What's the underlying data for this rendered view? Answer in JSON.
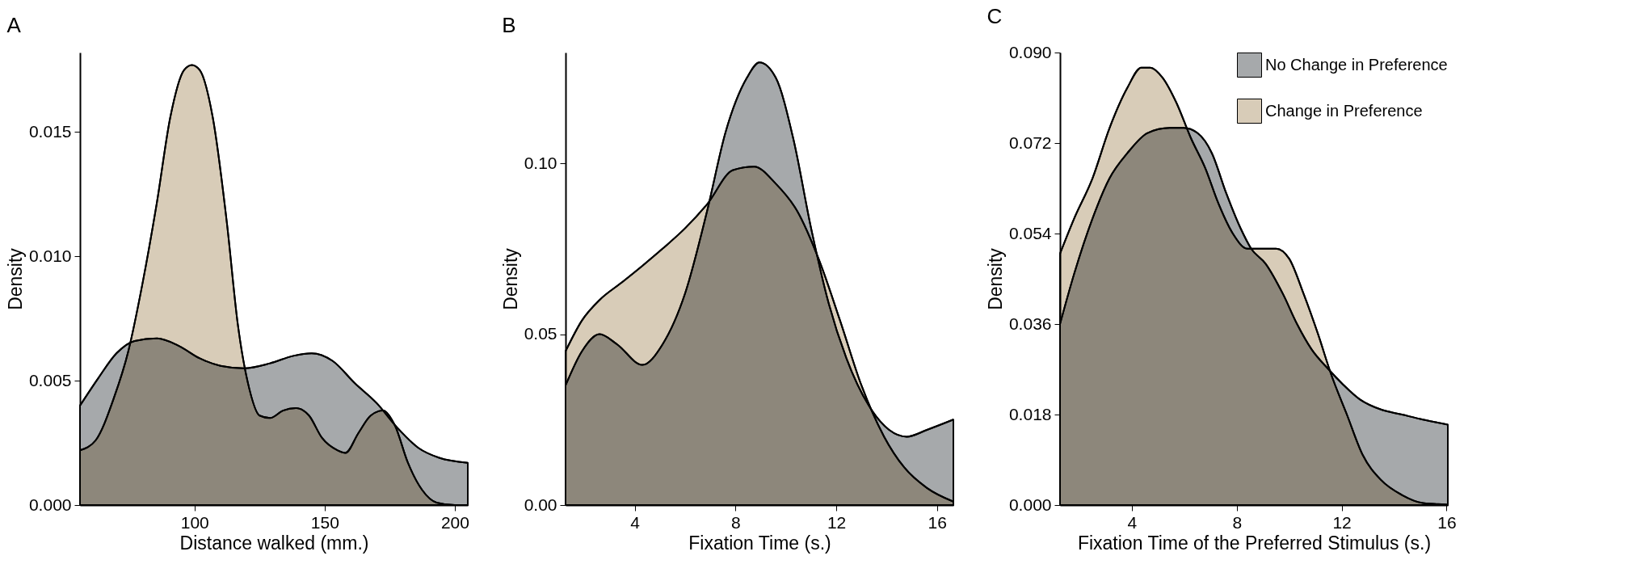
{
  "chart_data": [
    {
      "type": "area",
      "title": "A",
      "xlabel": "Distance walked (mm.)",
      "ylabel": "Density",
      "xlim": [
        56,
        205
      ],
      "xticks": [
        100,
        150,
        200
      ],
      "ylim": [
        0,
        0.0182
      ],
      "yticks": [
        {
          "value": 0,
          "label": "0.000"
        },
        {
          "value": 0.005,
          "label": "0.005"
        },
        {
          "value": 0.01,
          "label": "0.010"
        },
        {
          "value": 0.015,
          "label": "0.015"
        }
      ],
      "legend": false,
      "grid": false,
      "series": [
        {
          "color": "#a6a9ab",
          "x": [
            56,
            63,
            70,
            77,
            85.6,
            94,
            102,
            110,
            119,
            129,
            138,
            145,
            153,
            161.6,
            170,
            178,
            186,
            194,
            205
          ],
          "values": [
            0.004,
            0.0051,
            0.0061,
            0.0066,
            0.0067,
            0.0064,
            0.0059,
            0.0056,
            0.0055,
            0.0057,
            0.006,
            0.0061,
            0.0058,
            0.0049,
            0.0041,
            0.0031,
            0.0023,
            0.0019,
            0.0017
          ]
        },
        {
          "color": "#d8ccb8",
          "x": [
            56,
            62,
            69,
            74.6,
            80,
            85.6,
            90.7,
            96,
            99,
            102,
            107,
            112.5,
            116.6,
            121,
            125,
            129,
            134,
            139,
            144,
            149,
            155,
            158,
            163,
            167.7,
            172.5,
            177,
            182,
            187.5,
            193,
            200,
            205
          ],
          "values": [
            0.0022,
            0.0026,
            0.0043,
            0.0062,
            0.0089,
            0.0122,
            0.0156,
            0.0175,
            0.0177,
            0.0175,
            0.0156,
            0.0113,
            0.0073,
            0.0047,
            0.0036,
            0.0035,
            0.0038,
            0.0039,
            0.0036,
            0.0027,
            0.0022,
            0.0021,
            0.0029,
            0.0036,
            0.0038,
            0.0032,
            0.0017,
            0.0006,
            0.0001,
            0,
            0
          ]
        }
      ]
    },
    {
      "type": "area",
      "title": "B",
      "xlabel": "Fixation Time (s.)",
      "ylabel": "Density",
      "xlim": [
        1.25,
        16.65
      ],
      "xticks": [
        4,
        8,
        12,
        16
      ],
      "ylim": [
        0,
        0.1324
      ],
      "yticks": [
        {
          "value": 0,
          "label": "0.00"
        },
        {
          "value": 0.05,
          "label": "0.05"
        },
        {
          "value": 0.1,
          "label": "0.10"
        }
      ],
      "legend": false,
      "grid": false,
      "series": [
        {
          "color": "#a6a9ab",
          "x": [
            1.25,
            1.9,
            2.6,
            3.3,
            4.3,
            5.1,
            6.0,
            6.87,
            7.6,
            8.45,
            8.95,
            9.6,
            10.3,
            11.0,
            11.7,
            12.4,
            13.3,
            14.1,
            14.8,
            15.6,
            16.65
          ],
          "values": [
            0.035,
            0.045,
            0.05,
            0.047,
            0.041,
            0.047,
            0.062,
            0.086,
            0.109,
            0.125,
            0.1295,
            0.125,
            0.107,
            0.081,
            0.059,
            0.043,
            0.029,
            0.022,
            0.02,
            0.022,
            0.025
          ]
        },
        {
          "color": "#d8ccb8",
          "x": [
            1.25,
            1.9,
            2.6,
            3.46,
            4.3,
            5.1,
            6.0,
            6.87,
            7.9,
            8.74,
            9.6,
            10.45,
            11.3,
            12.15,
            13.0,
            13.9,
            14.7,
            15.6,
            16.65
          ],
          "values": [
            0.045,
            0.054,
            0.06,
            0.065,
            0.07,
            0.075,
            0.081,
            0.088,
            0.098,
            0.099,
            0.094,
            0.086,
            0.072,
            0.054,
            0.035,
            0.02,
            0.011,
            0.005,
            0.001
          ]
        }
      ]
    },
    {
      "type": "area",
      "title": "C",
      "xlabel": "Fixation Time of the Preferred Stimulus (s.)",
      "ylabel": "Density",
      "xlim": [
        1.26,
        16.05
      ],
      "xticks": [
        4,
        8,
        12,
        16
      ],
      "ylim": [
        0,
        0.09
      ],
      "yticks": [
        {
          "value": 0,
          "label": "0.000"
        },
        {
          "value": 0.018,
          "label": "0.018"
        },
        {
          "value": 0.036,
          "label": "0.036"
        },
        {
          "value": 0.054,
          "label": "0.054"
        },
        {
          "value": 0.072,
          "label": "0.072"
        },
        {
          "value": 0.09,
          "label": "0.090"
        }
      ],
      "legend": "top right",
      "grid": false,
      "series": [
        {
          "name": "No Change in Preference",
          "color": "#a6a9ab",
          "x": [
            1.26,
            1.8,
            2.5,
            3.15,
            3.83,
            4.6,
            5.44,
            5.98,
            6.5,
            7.05,
            7.6,
            8.15,
            8.55,
            9.1,
            9.76,
            10.3,
            10.85,
            11.5,
            12.05,
            12.7,
            13.5,
            14.3,
            15.1,
            16.05
          ],
          "values": [
            0.036,
            0.046,
            0.057,
            0.065,
            0.07,
            0.074,
            0.075,
            0.075,
            0.074,
            0.07,
            0.062,
            0.055,
            0.051,
            0.048,
            0.042,
            0.036,
            0.031,
            0.027,
            0.024,
            0.021,
            0.019,
            0.018,
            0.017,
            0.016
          ]
        },
        {
          "name": "Change in Preference",
          "color": "#d8ccb8",
          "x": [
            1.26,
            1.8,
            2.5,
            3.15,
            3.83,
            4.36,
            4.7,
            5.17,
            5.7,
            6.25,
            6.8,
            7.3,
            7.85,
            8.4,
            8.94,
            9.5,
            10.0,
            10.55,
            11.1,
            11.6,
            12.2,
            12.8,
            13.5,
            14.3,
            15.1,
            16.05
          ],
          "values": [
            0.05,
            0.057,
            0.065,
            0.075,
            0.083,
            0.087,
            0.087,
            0.085,
            0.08,
            0.073,
            0.067,
            0.06,
            0.054,
            0.051,
            0.051,
            0.051,
            0.049,
            0.042,
            0.034,
            0.026,
            0.018,
            0.01,
            0.005,
            0.002,
            0.0004,
            0.0001
          ]
        }
      ]
    }
  ]
}
